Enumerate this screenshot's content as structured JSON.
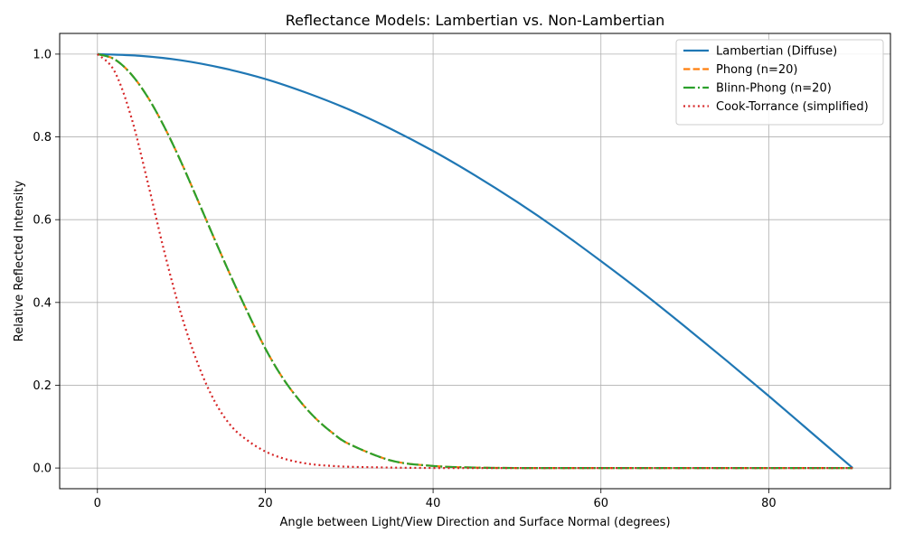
{
  "chart_data": {
    "type": "line",
    "title": "Reflectance Models: Lambertian vs. Non-Lambertian",
    "xlabel": "Angle between Light/View Direction and Surface Normal (degrees)",
    "ylabel": "Relative Reflected Intensity",
    "xlim": [
      -4.5,
      94.5
    ],
    "ylim": [
      -0.05,
      1.05
    ],
    "xticks": [
      0,
      20,
      40,
      60,
      80
    ],
    "yticks": [
      0.0,
      0.2,
      0.4,
      0.6,
      0.8,
      1.0
    ],
    "xtick_labels": [
      "0",
      "20",
      "40",
      "60",
      "80"
    ],
    "ytick_labels": [
      "0.0",
      "0.2",
      "0.4",
      "0.6",
      "0.8",
      "1.0"
    ],
    "grid": true,
    "legend_position": "top-right",
    "series": [
      {
        "name": "Lambertian (Diffuse)",
        "color": "#1f77b4",
        "style": "solid",
        "x": [
          0,
          5,
          10,
          15,
          20,
          25,
          30,
          35,
          40,
          45,
          50,
          55,
          60,
          65,
          70,
          75,
          80,
          85,
          90
        ],
        "y": [
          1.0,
          0.996,
          0.985,
          0.966,
          0.94,
          0.906,
          0.866,
          0.819,
          0.766,
          0.707,
          0.643,
          0.574,
          0.5,
          0.423,
          0.342,
          0.259,
          0.174,
          0.087,
          0.0
        ]
      },
      {
        "name": "Phong (n=20)",
        "color": "#ff7f0e",
        "style": "dashed",
        "x": [
          0,
          2,
          4,
          6,
          8,
          10,
          12,
          14,
          16,
          18,
          20,
          22,
          24,
          26,
          28,
          30,
          35,
          40,
          45,
          50,
          60,
          70,
          80,
          90
        ],
        "y": [
          1.0,
          0.988,
          0.952,
          0.896,
          0.823,
          0.738,
          0.645,
          0.551,
          0.459,
          0.372,
          0.289,
          0.22,
          0.165,
          0.12,
          0.085,
          0.058,
          0.018,
          0.005,
          0.001,
          0.0,
          0.0,
          0.0,
          0.0,
          0.0
        ]
      },
      {
        "name": "Blinn-Phong (n=20)",
        "color": "#2ca02c",
        "style": "dashdot",
        "x": [
          0,
          2,
          4,
          6,
          8,
          10,
          12,
          14,
          16,
          18,
          20,
          22,
          24,
          26,
          28,
          30,
          35,
          40,
          45,
          50,
          60,
          70,
          80,
          90
        ],
        "y": [
          1.0,
          0.988,
          0.952,
          0.896,
          0.823,
          0.738,
          0.645,
          0.551,
          0.459,
          0.372,
          0.289,
          0.22,
          0.165,
          0.12,
          0.085,
          0.058,
          0.018,
          0.005,
          0.001,
          0.0,
          0.0,
          0.0,
          0.0,
          0.0
        ]
      },
      {
        "name": "Cook-Torrance (simplified)",
        "color": "#d62728",
        "style": "dotted",
        "x": [
          0,
          2,
          4,
          6,
          8,
          10,
          12,
          14,
          16,
          18,
          20,
          22,
          24,
          26,
          28,
          30,
          35,
          40,
          45,
          50,
          60,
          70,
          80,
          90
        ],
        "y": [
          1.0,
          0.96,
          0.85,
          0.69,
          0.52,
          0.37,
          0.25,
          0.16,
          0.1,
          0.065,
          0.04,
          0.024,
          0.014,
          0.008,
          0.005,
          0.003,
          0.001,
          0.0,
          0.0,
          0.0,
          0.0,
          0.0,
          0.0,
          0.0
        ]
      }
    ]
  }
}
